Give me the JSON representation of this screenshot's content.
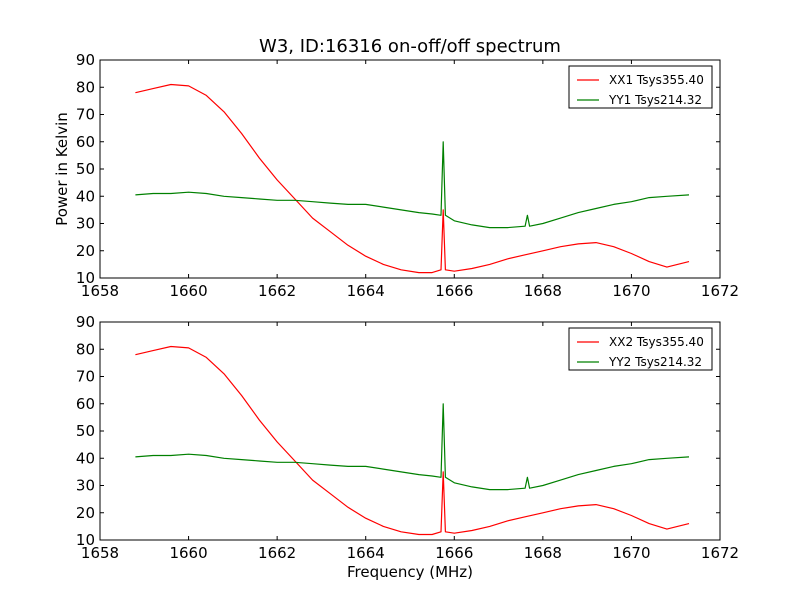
{
  "chart_data": [
    {
      "type": "line",
      "title": "W3, ID:16316 on-off/off spectrum",
      "xlabel": "",
      "ylabel": "Power in Kelvin",
      "xlim": [
        1658,
        1672
      ],
      "ylim": [
        10,
        90
      ],
      "xticks": [
        1658,
        1660,
        1662,
        1664,
        1666,
        1668,
        1670,
        1672
      ],
      "yticks": [
        10,
        20,
        30,
        40,
        50,
        60,
        70,
        80,
        90
      ],
      "grid": false,
      "legend": "top-right",
      "series": [
        {
          "name": "XX1 Tsys355.40",
          "color": "#ff0000",
          "x": [
            1658.8,
            1659.2,
            1659.6,
            1660.0,
            1660.4,
            1660.8,
            1661.2,
            1661.6,
            1662.0,
            1662.4,
            1662.8,
            1663.2,
            1663.6,
            1664.0,
            1664.4,
            1664.8,
            1665.2,
            1665.5,
            1665.7,
            1665.75,
            1665.8,
            1666.0,
            1666.4,
            1666.8,
            1667.2,
            1667.6,
            1668.0,
            1668.4,
            1668.8,
            1669.2,
            1669.6,
            1670.0,
            1670.4,
            1670.8,
            1671.3
          ],
          "values": [
            78,
            79.5,
            81,
            80.5,
            77,
            71,
            63,
            54,
            46,
            39,
            32,
            27,
            22,
            18,
            15,
            13,
            12,
            12,
            13,
            35,
            13,
            12.5,
            13.5,
            15,
            17,
            18.5,
            20,
            21.5,
            22.5,
            23,
            21.5,
            19,
            16,
            14,
            16
          ]
        },
        {
          "name": "YY1 Tsys214.32",
          "color": "#008000",
          "x": [
            1658.8,
            1659.2,
            1659.6,
            1660.0,
            1660.4,
            1660.8,
            1661.2,
            1661.6,
            1662.0,
            1662.4,
            1662.8,
            1663.2,
            1663.6,
            1664.0,
            1664.4,
            1664.8,
            1665.2,
            1665.5,
            1665.7,
            1665.75,
            1665.8,
            1666.0,
            1666.4,
            1666.8,
            1667.2,
            1667.6,
            1667.65,
            1667.7,
            1668.0,
            1668.4,
            1668.8,
            1669.2,
            1669.6,
            1670.0,
            1670.4,
            1670.8,
            1671.3
          ],
          "values": [
            40.5,
            41,
            41,
            41.5,
            41,
            40,
            39.5,
            39,
            38.5,
            38.5,
            38,
            37.5,
            37,
            37,
            36,
            35,
            34,
            33.5,
            33,
            60,
            33,
            31,
            29.5,
            28.5,
            28.5,
            29,
            33,
            29,
            30,
            32,
            34,
            35.5,
            37,
            38,
            39.5,
            40,
            40.5
          ]
        }
      ]
    },
    {
      "type": "line",
      "title": "",
      "xlabel": "Frequency (MHz)",
      "ylabel": "",
      "xlim": [
        1658,
        1672
      ],
      "ylim": [
        10,
        90
      ],
      "xticks": [
        1658,
        1660,
        1662,
        1664,
        1666,
        1668,
        1670,
        1672
      ],
      "yticks": [
        10,
        20,
        30,
        40,
        50,
        60,
        70,
        80,
        90
      ],
      "grid": false,
      "legend": "top-right",
      "series": [
        {
          "name": "XX2 Tsys355.40",
          "color": "#ff0000",
          "x": [
            1658.8,
            1659.2,
            1659.6,
            1660.0,
            1660.4,
            1660.8,
            1661.2,
            1661.6,
            1662.0,
            1662.4,
            1662.8,
            1663.2,
            1663.6,
            1664.0,
            1664.4,
            1664.8,
            1665.2,
            1665.5,
            1665.7,
            1665.75,
            1665.8,
            1666.0,
            1666.4,
            1666.8,
            1667.2,
            1667.6,
            1668.0,
            1668.4,
            1668.8,
            1669.2,
            1669.6,
            1670.0,
            1670.4,
            1670.8,
            1671.3
          ],
          "values": [
            78,
            79.5,
            81,
            80.5,
            77,
            71,
            63,
            54,
            46,
            39,
            32,
            27,
            22,
            18,
            15,
            13,
            12,
            12,
            13,
            35,
            13,
            12.5,
            13.5,
            15,
            17,
            18.5,
            20,
            21.5,
            22.5,
            23,
            21.5,
            19,
            16,
            14,
            16
          ]
        },
        {
          "name": "YY2 Tsys214.32",
          "color": "#008000",
          "x": [
            1658.8,
            1659.2,
            1659.6,
            1660.0,
            1660.4,
            1660.8,
            1661.2,
            1661.6,
            1662.0,
            1662.4,
            1662.8,
            1663.2,
            1663.6,
            1664.0,
            1664.4,
            1664.8,
            1665.2,
            1665.5,
            1665.7,
            1665.75,
            1665.8,
            1666.0,
            1666.4,
            1666.8,
            1667.2,
            1667.6,
            1667.65,
            1667.7,
            1668.0,
            1668.4,
            1668.8,
            1669.2,
            1669.6,
            1670.0,
            1670.4,
            1670.8,
            1671.3
          ],
          "values": [
            40.5,
            41,
            41,
            41.5,
            41,
            40,
            39.5,
            39,
            38.5,
            38.5,
            38,
            37.5,
            37,
            37,
            36,
            35,
            34,
            33.5,
            33,
            60,
            33,
            31,
            29.5,
            28.5,
            28.5,
            29,
            33,
            29,
            30,
            32,
            34,
            35.5,
            37,
            38,
            39.5,
            40,
            40.5
          ]
        }
      ]
    }
  ]
}
